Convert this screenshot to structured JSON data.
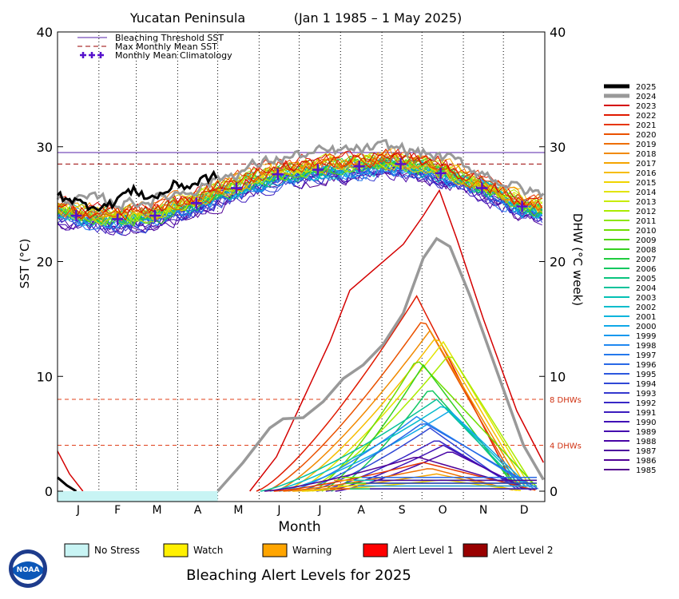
{
  "chart_data": {
    "type": "line",
    "title": "Yucatan Peninsula",
    "subtitle": "(Jan 1 1985 – 1 May 2025)",
    "xlabel": "Month",
    "ylabel": "SST (°C)",
    "ylabel_right": "DHW (°C week)",
    "ylim": [
      0,
      40
    ],
    "yticks": [
      "0",
      "10",
      "20",
      "30",
      "40"
    ],
    "months": [
      "J",
      "F",
      "M",
      "A",
      "M",
      "J",
      "J",
      "A",
      "S",
      "O",
      "N",
      "D"
    ],
    "bleaching_threshold_sst": 29.5,
    "max_monthly_mean_sst": 28.5,
    "climatology": [
      {
        "day": 15,
        "value": 24.0
      },
      {
        "day": 46,
        "value": 23.7
      },
      {
        "day": 74,
        "value": 24.0
      },
      {
        "day": 105,
        "value": 25.1
      },
      {
        "day": 135,
        "value": 26.4
      },
      {
        "day": 166,
        "value": 27.6
      },
      {
        "day": 196,
        "value": 28.0
      },
      {
        "day": 227,
        "value": 28.3
      },
      {
        "day": 258,
        "value": 28.5
      },
      {
        "day": 288,
        "value": 27.7
      },
      {
        "day": 319,
        "value": 26.4
      },
      {
        "day": 349,
        "value": 24.8
      }
    ],
    "dhw_reference": [
      {
        "label": "8 DHWs",
        "value": 8
      },
      {
        "label": "4 DHWs",
        "value": 4
      }
    ],
    "sst_2025": [
      {
        "day": 1,
        "value": 25.8
      },
      {
        "day": 10,
        "value": 25.5
      },
      {
        "day": 20,
        "value": 25.0
      },
      {
        "day": 30,
        "value": 24.8
      },
      {
        "day": 40,
        "value": 24.9
      },
      {
        "day": 50,
        "value": 25.9
      },
      {
        "day": 60,
        "value": 26.2
      },
      {
        "day": 70,
        "value": 25.5
      },
      {
        "day": 80,
        "value": 25.9
      },
      {
        "day": 90,
        "value": 26.8
      },
      {
        "day": 100,
        "value": 26.5
      },
      {
        "day": 110,
        "value": 27.2
      },
      {
        "day": 121,
        "value": 27.5
      }
    ],
    "sst_2024": [
      {
        "day": 150,
        "value": 29.2
      },
      {
        "day": 175,
        "value": 29.5
      },
      {
        "day": 200,
        "value": 29.8
      },
      {
        "day": 230,
        "value": 29.9
      },
      {
        "day": 255,
        "value": 30.4
      },
      {
        "day": 275,
        "value": 30.0
      },
      {
        "day": 300,
        "value": 29.0
      },
      {
        "day": 330,
        "value": 27.5
      },
      {
        "day": 365,
        "value": 26.0
      }
    ],
    "dhw_2024": [
      {
        "day": 121,
        "value": 0
      },
      {
        "day": 140,
        "value": 2.5
      },
      {
        "day": 160,
        "value": 5.5
      },
      {
        "day": 170,
        "value": 6.3
      },
      {
        "day": 185,
        "value": 6.4
      },
      {
        "day": 200,
        "value": 7.8
      },
      {
        "day": 215,
        "value": 9.8
      },
      {
        "day": 230,
        "value": 11.0
      },
      {
        "day": 245,
        "value": 12.8
      },
      {
        "day": 260,
        "value": 15.5
      },
      {
        "day": 275,
        "value": 20.3
      },
      {
        "day": 285,
        "value": 22.0
      },
      {
        "day": 295,
        "value": 21.3
      },
      {
        "day": 310,
        "value": 17.0
      },
      {
        "day": 330,
        "value": 10.5
      },
      {
        "day": 350,
        "value": 4.0
      },
      {
        "day": 365,
        "value": 1.0
      }
    ],
    "dhw_2023": [
      {
        "day": 145,
        "value": 0
      },
      {
        "day": 165,
        "value": 3.0
      },
      {
        "day": 185,
        "value": 8.0
      },
      {
        "day": 205,
        "value": 13.0
      },
      {
        "day": 220,
        "value": 17.5
      },
      {
        "day": 240,
        "value": 19.5
      },
      {
        "day": 260,
        "value": 21.5
      },
      {
        "day": 275,
        "value": 24.0
      },
      {
        "day": 287,
        "value": 26.2
      },
      {
        "day": 300,
        "value": 22.0
      },
      {
        "day": 320,
        "value": 15.0
      },
      {
        "day": 345,
        "value": 7.0
      },
      {
        "day": 365,
        "value": 2.5
      }
    ],
    "dhw_other_peaks": [
      17,
      15,
      14,
      13.5,
      13,
      12,
      11.5,
      11,
      9,
      8,
      7.5,
      7,
      6.5,
      6,
      5.5,
      4.5,
      4,
      3.5,
      3,
      2.5,
      2,
      1.5,
      1
    ],
    "legend": [
      {
        "label": "Bleaching Threshold SST",
        "color": "#5522aa"
      },
      {
        "label": "Max Monthly Mean SST",
        "color": "#990000"
      },
      {
        "label": "Monthly Mean Climatology",
        "color": "#5511cc"
      }
    ],
    "years": [
      "2025",
      "2024",
      "2023",
      "2022",
      "2021",
      "2020",
      "2019",
      "2018",
      "2017",
      "2016",
      "2015",
      "2014",
      "2013",
      "2012",
      "2011",
      "2010",
      "2009",
      "2008",
      "2007",
      "2006",
      "2005",
      "2004",
      "2003",
      "2002",
      "2001",
      "2000",
      "1999",
      "1998",
      "1997",
      "1996",
      "1995",
      "1994",
      "1993",
      "1992",
      "1991",
      "1990",
      "1989",
      "1988",
      "1987",
      "1986",
      "1985"
    ],
    "year_colors": [
      "#000000",
      "#999999",
      "#d40000",
      "#e01a00",
      "#e63600",
      "#ea5200",
      "#ee6e00",
      "#f18a00",
      "#f4a400",
      "#f6bd00",
      "#f0d400",
      "#e2e400",
      "#c8ec00",
      "#aaec00",
      "#8ce600",
      "#6ede00",
      "#50d600",
      "#34d020",
      "#20cc40",
      "#12c860",
      "#0ac47e",
      "#06c29a",
      "#04c0b4",
      "#06bccc",
      "#0ab4dc",
      "#10a8e8",
      "#1898ee",
      "#2088f0",
      "#2478ec",
      "#2868e6",
      "#2c58de",
      "#3048d6",
      "#3438ce",
      "#3828c6",
      "#3c1cbe",
      "#4010b6",
      "#4408ae",
      "#4804a6",
      "#4c029e",
      "#500096",
      "#54008e"
    ],
    "alert_levels": [
      {
        "label": "No Stress",
        "color": "#c8f4f4"
      },
      {
        "label": "Watch",
        "color": "#fff000"
      },
      {
        "label": "Warning",
        "color": "#ffa500"
      },
      {
        "label": "Alert Level 1",
        "color": "#ff0000"
      },
      {
        "label": "Alert Level 2",
        "color": "#990000"
      }
    ],
    "alert_title": "Bleaching Alert Levels for 2025",
    "alert_bar_no_stress_until_day": 121
  },
  "logo_text": "NOAA"
}
